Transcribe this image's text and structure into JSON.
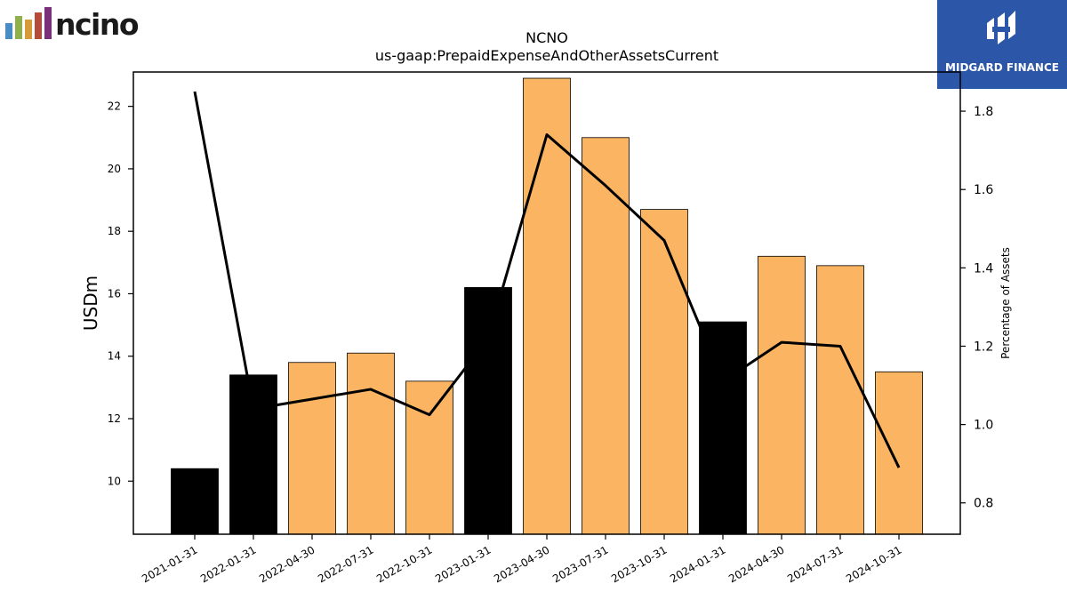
{
  "logo": {
    "text": "ncino",
    "bar_colors": [
      "#4a8cc4",
      "#8fb04a",
      "#d69a3a",
      "#b84a3a",
      "#7a2f7a"
    ]
  },
  "brand": {
    "name": "MIDGARD FINANCE",
    "color": "#2c57a8"
  },
  "chart_data": {
    "type": "bar",
    "title": "NCNO",
    "subtitle": "us-gaap:PrepaidExpenseAndOtherAssetsCurrent",
    "ylabel": "USDm",
    "y2label": "Percentage of Assets",
    "categories": [
      "2021-01-31",
      "2022-01-31",
      "2022-04-30",
      "2022-07-31",
      "2022-10-31",
      "2023-01-31",
      "2023-04-30",
      "2023-07-31",
      "2023-10-31",
      "2024-01-31",
      "2024-04-30",
      "2024-07-31",
      "2024-10-31"
    ],
    "values": [
      10.4,
      13.4,
      13.8,
      14.1,
      13.2,
      16.2,
      22.9,
      21.0,
      18.7,
      15.1,
      17.2,
      16.9,
      13.5
    ],
    "bar_colors": [
      "#000000",
      "#000000",
      "#fbb462",
      "#fbb462",
      "#fbb462",
      "#000000",
      "#fbb462",
      "#fbb462",
      "#fbb462",
      "#000000",
      "#fbb462",
      "#fbb462",
      "#fbb462"
    ],
    "line_values": [
      1.85,
      1.04,
      1.065,
      1.09,
      1.025,
      1.22,
      1.74,
      1.61,
      1.47,
      1.11,
      1.21,
      1.2,
      0.89
    ],
    "ylim": [
      8.3,
      23.1
    ],
    "y2lim": [
      0.72,
      1.9
    ],
    "yticks": [
      10,
      12,
      14,
      16,
      18,
      20,
      22
    ],
    "y2ticks": [
      0.8,
      1.0,
      1.2,
      1.4,
      1.6,
      1.8
    ],
    "grid": false
  }
}
